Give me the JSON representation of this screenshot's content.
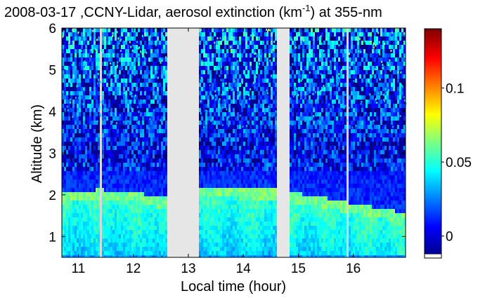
{
  "chart_data": {
    "type": "heatmap",
    "title_text": "2008-03-17 ,CCNY-Lidar, aerosol extinction (km",
    "title_superscript": "-1",
    "title_tail": ") at 355-nm",
    "xlabel": "Local time (hour)",
    "ylabel": "Altitude (km)",
    "xlim": [
      10.7,
      16.95
    ],
    "ylim": [
      0.5,
      6.0
    ],
    "x_ticks": [
      "11",
      "12",
      "13",
      "14",
      "15",
      "16"
    ],
    "x_tick_values": [
      11,
      12,
      13,
      14,
      15,
      16
    ],
    "y_ticks": [
      "1",
      "2",
      "3",
      "4",
      "5",
      "6"
    ],
    "y_tick_values": [
      1,
      2,
      3,
      4,
      5,
      6
    ],
    "colorbar": {
      "colormap": "jet",
      "range": [
        -0.012,
        0.14
      ],
      "ticks": [
        "0",
        "0.05",
        "0.1"
      ],
      "tick_values": [
        0,
        0.05,
        0.1
      ]
    },
    "data_gaps_hours": [
      [
        12.6,
        13.18
      ],
      [
        14.6,
        14.84
      ]
    ],
    "thin_gaps_hours": [
      11.4,
      15.9
    ],
    "layers": {
      "surface_layer_top_km": 0.6,
      "boundary_layer_profile": [
        {
          "x": 10.75,
          "top_km": 1.95
        },
        {
          "x": 11.4,
          "top_km": 2.0
        },
        {
          "x": 12.0,
          "top_km": 1.95
        },
        {
          "x": 12.55,
          "top_km": 1.8
        },
        {
          "x": 13.18,
          "top_km": 2.05
        },
        {
          "x": 14.0,
          "top_km": 2.05
        },
        {
          "x": 14.6,
          "top_km": 2.0
        },
        {
          "x": 14.84,
          "top_km": 1.95
        },
        {
          "x": 15.5,
          "top_km": 1.8
        },
        {
          "x": 16.3,
          "top_km": 1.6
        },
        {
          "x": 16.95,
          "top_km": 1.45
        }
      ]
    },
    "background_color": "#e6e6e6"
  }
}
